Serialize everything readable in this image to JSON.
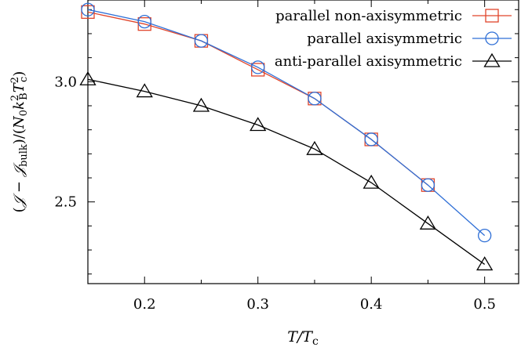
{
  "chart_data": {
    "type": "line",
    "title": "",
    "xlabel": "T/T_c",
    "ylabel": "(J − J_bulk)/(N_0 k_B^2 T_c^2)",
    "xlim": [
      0.15,
      0.53
    ],
    "ylim": [
      2.16,
      3.34
    ],
    "xticks": [
      0.2,
      0.3,
      0.4,
      0.5
    ],
    "yticks": [
      2.5,
      3.0
    ],
    "xtick_labels": [
      "0.2",
      "0.3",
      "0.4",
      "0.5"
    ],
    "ytick_labels": [
      "2.5",
      "3.0"
    ],
    "grid": false,
    "legend_position": "top-right",
    "series": [
      {
        "name": "parallel non-axisymmetric",
        "color": "#e0452b",
        "marker": "square",
        "x": [
          0.15,
          0.2,
          0.25,
          0.3,
          0.35,
          0.4,
          0.45
        ],
        "y": [
          3.29,
          3.24,
          3.17,
          3.05,
          2.93,
          2.76,
          2.57
        ]
      },
      {
        "name": "parallel axisymmetric",
        "color": "#2f6fd6",
        "marker": "circle",
        "x": [
          0.15,
          0.2,
          0.25,
          0.3,
          0.35,
          0.4,
          0.45,
          0.5
        ],
        "y": [
          3.3,
          3.25,
          3.17,
          3.06,
          2.93,
          2.76,
          2.57,
          2.36
        ]
      },
      {
        "name": "anti-parallel axisymmetric",
        "color": "#000000",
        "marker": "triangle",
        "x": [
          0.15,
          0.2,
          0.25,
          0.3,
          0.35,
          0.4,
          0.45,
          0.5
        ],
        "y": [
          3.01,
          2.96,
          2.9,
          2.82,
          2.72,
          2.58,
          2.41,
          2.24
        ]
      }
    ]
  }
}
